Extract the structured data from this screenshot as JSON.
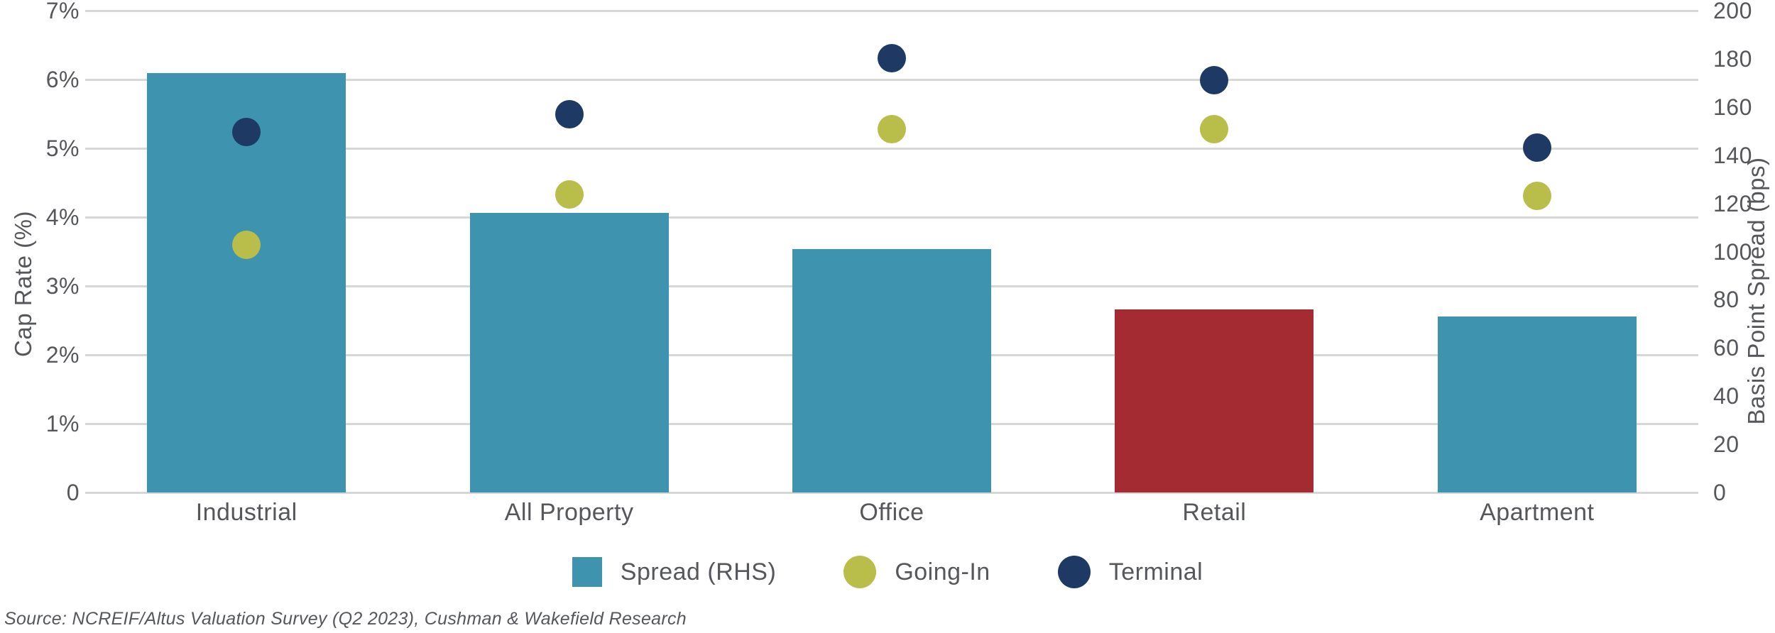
{
  "chart_data": {
    "type": "bar",
    "subtype": "dual-axis bar with scatter overlay",
    "categories": [
      "Industrial",
      "All Property",
      "Office",
      "Retail",
      "Apartment"
    ],
    "series": [
      {
        "name": "Spread (RHS)",
        "render": "bar",
        "axis": "right",
        "unit": "bps",
        "values": [
          174,
          116,
          101,
          76,
          73
        ],
        "colors": [
          "#3E93AE",
          "#3E93AE",
          "#3E93AE",
          "#A42B32",
          "#3E93AE"
        ]
      },
      {
        "name": "Going-In",
        "render": "scatter",
        "axis": "left",
        "unit": "%",
        "values": [
          3.6,
          4.33,
          5.28,
          5.28,
          4.31
        ],
        "color": "#B9BE4B"
      },
      {
        "name": "Terminal",
        "render": "scatter",
        "axis": "left",
        "unit": "%",
        "values": [
          5.24,
          5.49,
          6.31,
          5.99,
          5.01
        ],
        "color": "#1E3A64"
      }
    ],
    "left_axis": {
      "label": "Cap Rate (%)",
      "min": 0,
      "max": 7,
      "ticks": [
        "7%",
        "6%",
        "5%",
        "4%",
        "3%",
        "2%",
        "1%",
        "0"
      ],
      "tick_values": [
        7,
        6,
        5,
        4,
        3,
        2,
        1,
        0
      ]
    },
    "right_axis": {
      "label": "Basis Point Spread (bps)",
      "min": 0,
      "max": 200,
      "ticks": [
        "200",
        "180",
        "160",
        "140",
        "120",
        "100",
        "80",
        "60",
        "40",
        "20",
        "0"
      ],
      "tick_values": [
        200,
        180,
        160,
        140,
        120,
        100,
        80,
        60,
        40,
        20,
        0
      ]
    },
    "grid": "horizontal gridlines at each left-axis tick",
    "legend_position": "bottom-center",
    "title": ""
  },
  "legend": {
    "items": [
      {
        "name": "spread-swatch",
        "label": "Spread (RHS)",
        "shape": "square",
        "color": "#3E93AE"
      },
      {
        "name": "going-in-swatch",
        "label": "Going-In",
        "shape": "circle",
        "color": "#B9BE4B"
      },
      {
        "name": "terminal-swatch",
        "label": "Terminal",
        "shape": "circle",
        "color": "#1E3A64"
      }
    ]
  },
  "source": {
    "text": "Source: NCREIF/Altus Valuation Survey (Q2 2023), Cushman & Wakefield Research"
  },
  "colors": {
    "bar_teal": "#3E93AE",
    "bar_red_highlight": "#A42B32",
    "dot_olive": "#B9BE4B",
    "dot_navy": "#1E3A64",
    "gridline": "#D7D7D7",
    "text": "#55575B",
    "background": "#FFFFFF"
  }
}
